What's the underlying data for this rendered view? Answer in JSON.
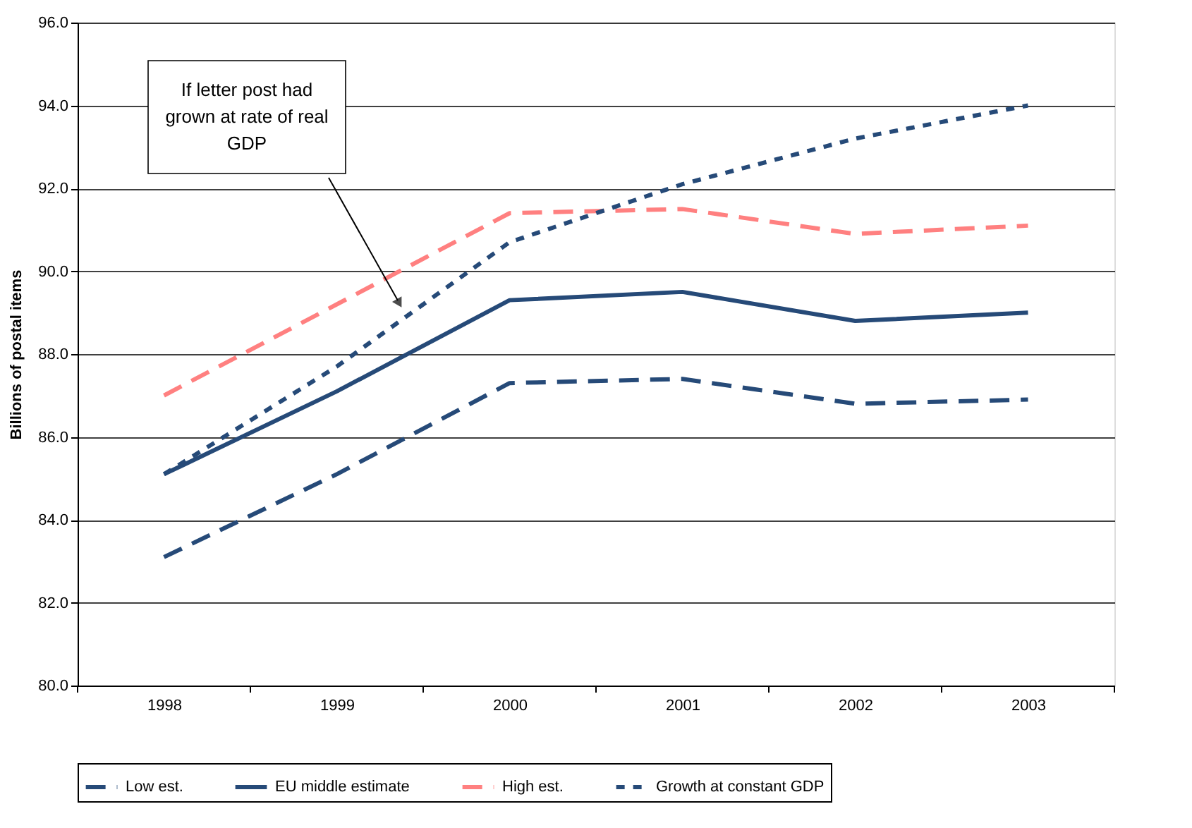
{
  "chart_data": {
    "type": "line",
    "ylabel": "Billions of postal items",
    "categories": [
      "1998",
      "1999",
      "2000",
      "2001",
      "2002",
      "2003"
    ],
    "series": [
      {
        "name": "Low est.",
        "color": "#264a78",
        "line_style": "dashed",
        "values": [
          83.1,
          85.1,
          87.3,
          87.4,
          86.8,
          86.9
        ]
      },
      {
        "name": "EU middle estimate",
        "color": "#264a78",
        "line_style": "solid",
        "values": [
          85.1,
          87.1,
          89.3,
          89.5,
          88.8,
          89.0
        ]
      },
      {
        "name": "High est.",
        "color": "#ff8080",
        "line_style": "dashed",
        "values": [
          87.0,
          89.2,
          91.4,
          91.5,
          90.9,
          91.1
        ]
      },
      {
        "name": "Growth at constant GDP",
        "color": "#264a78",
        "line_style": "dotted",
        "values": [
          85.1,
          87.7,
          90.7,
          92.1,
          93.2,
          94.0
        ]
      }
    ],
    "ylim": [
      80,
      96
    ],
    "yticks": [
      {
        "value": 80,
        "label": "80.0"
      },
      {
        "value": 82,
        "label": "82.0"
      },
      {
        "value": 84,
        "label": "84.0"
      },
      {
        "value": 86,
        "label": "86.0"
      },
      {
        "value": 88,
        "label": "88.0"
      },
      {
        "value": 90,
        "label": "90.0"
      },
      {
        "value": 92,
        "label": "92.0"
      },
      {
        "value": 94,
        "label": "94.0"
      },
      {
        "value": 96,
        "label": "96.0"
      }
    ],
    "grid": "y",
    "legend": "bottom",
    "marker": "none",
    "annotations": [
      "If letter post had grown at rate of real GDP"
    ]
  }
}
